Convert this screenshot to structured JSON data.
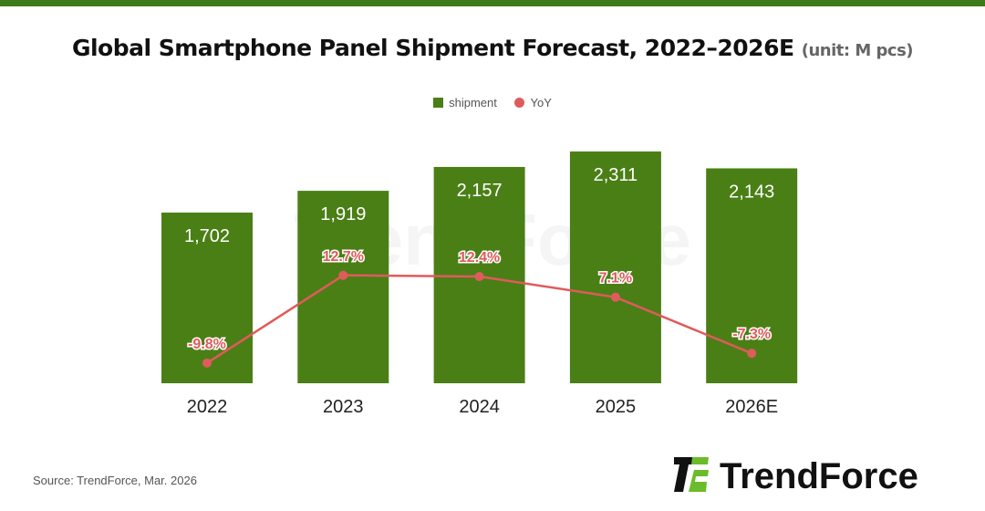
{
  "title": "Global Smartphone Panel Shipment Forecast, 2022–2026E",
  "unit": "(unit: M pcs)",
  "source": "Source: TrendForce, Mar. 2026",
  "logo_text": "TrendForce",
  "chart_data": {
    "type": "bar+line",
    "categories": [
      "2022",
      "2023",
      "2024",
      "2025",
      "2026E"
    ],
    "series": [
      {
        "name": "shipment",
        "type": "bar",
        "values": [
          1702,
          1919,
          2157,
          2311,
          2143
        ],
        "labels": [
          "1,702",
          "1,919",
          "2,157",
          "2,311",
          "2,143"
        ],
        "color": "#4a7f16"
      },
      {
        "name": "YoY",
        "type": "line",
        "values": [
          -9.8,
          12.7,
          12.4,
          7.1,
          -7.3
        ],
        "labels": [
          "-9.8%",
          "12.7%",
          "12.4%",
          "7.1%",
          "-7.3%"
        ],
        "color": "#e05b5b"
      }
    ],
    "legend": "top-center",
    "grid": false
  }
}
